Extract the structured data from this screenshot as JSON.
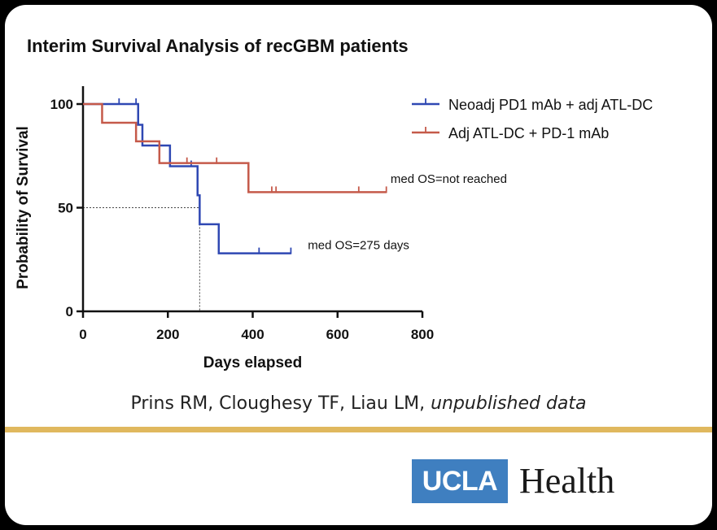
{
  "chart_data": {
    "type": "line",
    "title": "Interim Survival Analysis of recGBM patients",
    "xlabel": "Days elapsed",
    "ylabel": "Probability of Survival",
    "xlim": [
      0,
      800
    ],
    "ylim": [
      0,
      100
    ],
    "xticks": [
      0,
      200,
      400,
      600,
      800
    ],
    "yticks": [
      0,
      50,
      100
    ],
    "step": true,
    "series": [
      {
        "name": "Neoadj PD1 mAb + adj ATL-DC",
        "color": "#2f48b3",
        "x": [
          0,
          130,
          140,
          180,
          205,
          255,
          270,
          275,
          320,
          490
        ],
        "y": [
          100,
          90,
          80,
          80,
          70,
          70,
          56,
          42,
          28,
          28
        ],
        "censored": [
          [
            85,
            100
          ],
          [
            125,
            100
          ],
          [
            205,
            70
          ],
          [
            255,
            70
          ],
          [
            415,
            28
          ],
          [
            490,
            28
          ]
        ]
      },
      {
        "name": "Adj ATL-DC + PD-1 mAb",
        "color": "#c55a4a",
        "x": [
          0,
          45,
          125,
          180,
          255,
          390,
          715
        ],
        "y": [
          100,
          91,
          82,
          71.5,
          71.5,
          57.5,
          57.5
        ],
        "censored": [
          [
            245,
            71.5
          ],
          [
            315,
            71.5
          ],
          [
            445,
            57.5
          ],
          [
            455,
            57.5
          ],
          [
            650,
            57.5
          ],
          [
            715,
            57.5
          ]
        ]
      }
    ],
    "reference_lines": {
      "median_y": 50,
      "median_x": 275
    },
    "annotations": [
      {
        "text": "med OS=not reached",
        "x": 725,
        "y": 62
      },
      {
        "text": "med OS=275 days",
        "x": 530,
        "y": 30
      }
    ],
    "legend_position": "top-right"
  },
  "citation": {
    "authors": "Prins RM, Cloughesy TF, Liau LM, ",
    "note": "unpublished data"
  },
  "logo": {
    "box_text": "UCLA",
    "word": "Health"
  }
}
